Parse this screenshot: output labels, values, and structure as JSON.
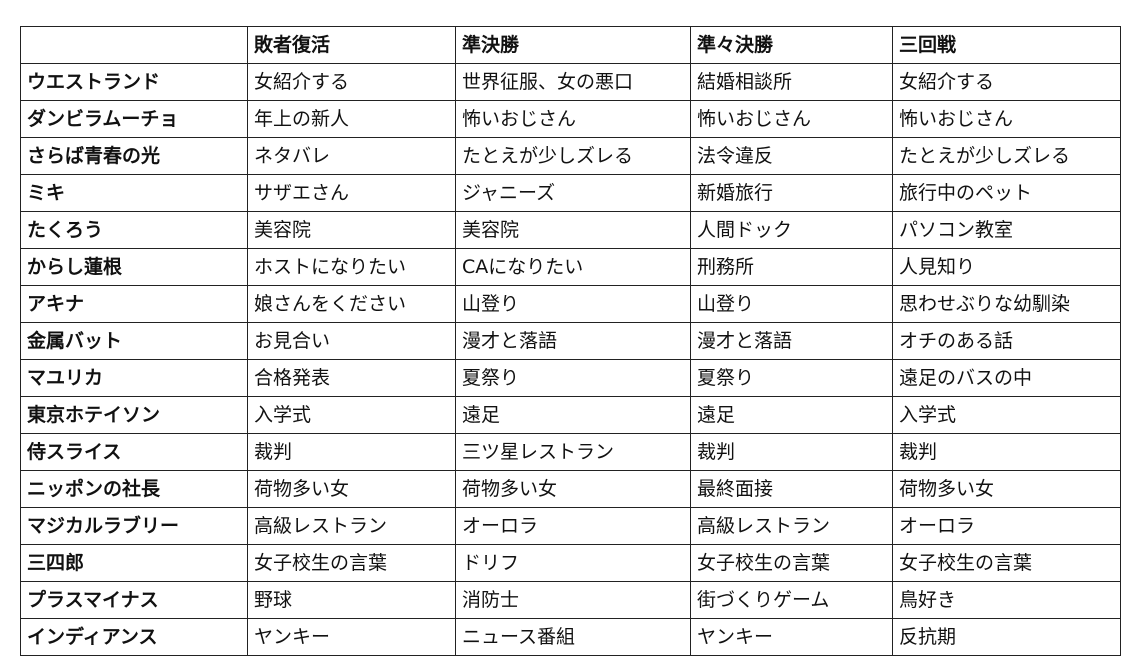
{
  "table": {
    "headers": [
      "",
      "敗者復活",
      "準決勝",
      "準々決勝",
      "三回戦"
    ],
    "rows": [
      [
        "ウエストランド",
        "女紹介する",
        "世界征服、女の悪口",
        "結婚相談所",
        "女紹介する"
      ],
      [
        "ダンビラムーチョ",
        "年上の新人",
        "怖いおじさん",
        "怖いおじさん",
        "怖いおじさん"
      ],
      [
        "さらば青春の光",
        "ネタバレ",
        "たとえが少しズレる",
        "法令違反",
        "たとえが少しズレる"
      ],
      [
        "ミキ",
        "サザエさん",
        "ジャニーズ",
        "新婚旅行",
        "旅行中のペット"
      ],
      [
        "たくろう",
        "美容院",
        "美容院",
        "人間ドック",
        "パソコン教室"
      ],
      [
        "からし蓮根",
        "ホストになりたい",
        "CAになりたい",
        "刑務所",
        "人見知り"
      ],
      [
        "アキナ",
        "娘さんをください",
        "山登り",
        "山登り",
        "思わせぶりな幼馴染"
      ],
      [
        "金属バット",
        "お見合い",
        "漫才と落語",
        "漫才と落語",
        "オチのある話"
      ],
      [
        "マユリカ",
        "合格発表",
        "夏祭り",
        "夏祭り",
        "遠足のバスの中"
      ],
      [
        "東京ホテイソン",
        "入学式",
        "遠足",
        "遠足",
        "入学式"
      ],
      [
        "侍スライス",
        "裁判",
        "三ツ星レストラン",
        "裁判",
        "裁判"
      ],
      [
        "ニッポンの社長",
        "荷物多い女",
        "荷物多い女",
        "最終面接",
        "荷物多い女"
      ],
      [
        "マジカルラブリー",
        "高級レストラン",
        "オーロラ",
        "高級レストラン",
        "オーロラ"
      ],
      [
        "三四郎",
        "女子校生の言葉",
        "ドリフ",
        "女子校生の言葉",
        "女子校生の言葉"
      ],
      [
        "プラスマイナス",
        "野球",
        "消防士",
        "街づくりゲーム",
        "鳥好き"
      ],
      [
        "インディアンス",
        "ヤンキー",
        "ニュース番組",
        "ヤンキー",
        "反抗期"
      ]
    ]
  }
}
